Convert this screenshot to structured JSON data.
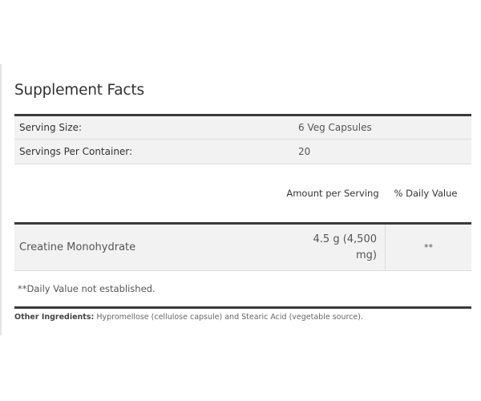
{
  "title": "Supplement Facts",
  "serving_info": [
    {
      "label": "Serving Size:",
      "value": "6 Veg Capsules"
    },
    {
      "label": "Servings Per Container:",
      "value": "20"
    }
  ],
  "headers": {
    "amount": "Amount per Serving",
    "daily_value": "% Daily Value"
  },
  "ingredients": [
    {
      "name": "Creatine Monohydrate",
      "amount": "4.5 g (4,500 mg)",
      "daily_value": "**"
    }
  ],
  "footnote": "**Daily Value not established.",
  "other_ingredients": {
    "label": "Other Ingredients:",
    "text": " Hypromellose (cellulose capsule) and Stearic Acid (vegetable source)."
  }
}
